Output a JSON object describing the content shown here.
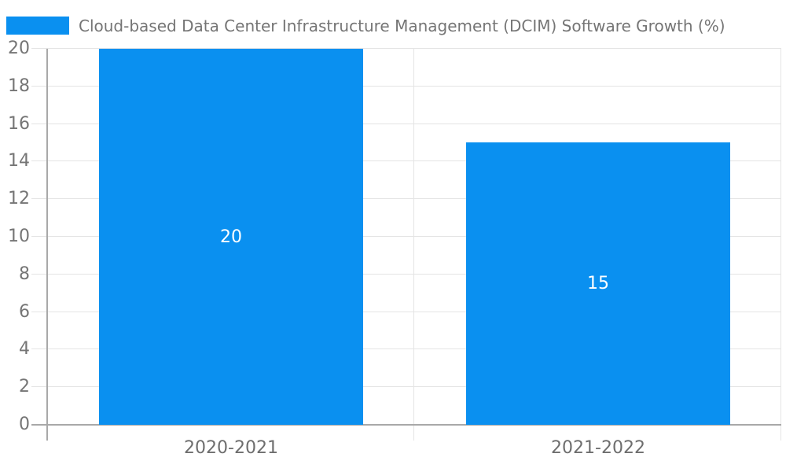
{
  "chart_data": {
    "type": "bar",
    "title": "Cloud-based Data Center Infrastructure Management (DCIM) Software Growth (%)",
    "categories": [
      "2020-2021",
      "2021-2022"
    ],
    "values": [
      20,
      15
    ],
    "data_labels": [
      "20",
      "15"
    ],
    "xlabel": "",
    "ylabel": "",
    "ylim": [
      0,
      20
    ],
    "yticks": [
      0,
      2,
      4,
      6,
      8,
      10,
      12,
      14,
      16,
      18,
      20
    ],
    "grid": true,
    "legend_position": "top-left"
  },
  "colors": {
    "bar": "#0a90f0",
    "title_text": "#757575",
    "y_tick_text": "#757575",
    "x_tick_text": "#6e6e6e",
    "grid_line": "#e4e4e4",
    "axis_line": "#a9a9a9",
    "bar_label_text": "#ffffff",
    "background": "#ffffff"
  }
}
